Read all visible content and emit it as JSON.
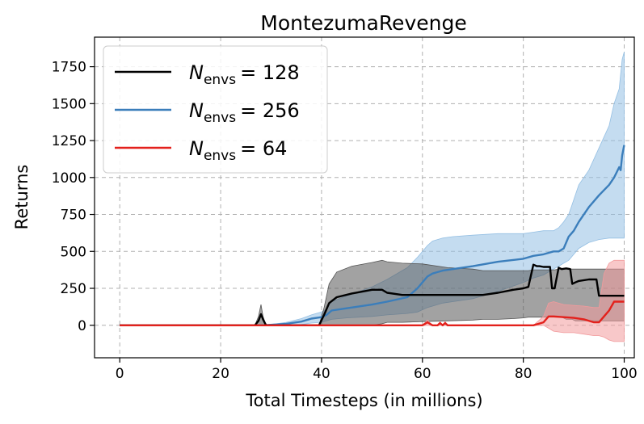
{
  "chart_data": {
    "type": "line",
    "title": "MontezumaRevenge",
    "xlabel": "Total Timesteps (in millions)",
    "ylabel": "Returns",
    "xlim": [
      -5,
      102
    ],
    "ylim": [
      -220,
      1950
    ],
    "xticks": [
      0,
      20,
      40,
      60,
      80,
      100
    ],
    "yticks": [
      0,
      250,
      500,
      750,
      1000,
      1250,
      1500,
      1750
    ],
    "grid": true,
    "legend_position": "top-left",
    "series": [
      {
        "legend_symbol": "N",
        "legend_subscript": "envs",
        "legend_value": "= 128",
        "color": "#000000",
        "fill_color": "#555555",
        "x": [
          0,
          26.8,
          27.5,
          28.0,
          28.4,
          29.0,
          39.5,
          40.5,
          41.5,
          43,
          46,
          50,
          52,
          53,
          56,
          60,
          65,
          70,
          72,
          75,
          78,
          80,
          81,
          82,
          82.7,
          83.2,
          84,
          85.3,
          85.7,
          86.2,
          87.0,
          87.6,
          88.5,
          89.3,
          89.7,
          90.3,
          91.0,
          93,
          94.5,
          95,
          95.5,
          97,
          100
        ],
        "y": [
          0,
          0,
          30,
          75,
          40,
          0,
          0,
          70,
          150,
          190,
          215,
          240,
          240,
          220,
          205,
          205,
          205,
          205,
          205,
          220,
          240,
          250,
          260,
          410,
          400,
          400,
          395,
          395,
          250,
          250,
          390,
          380,
          385,
          380,
          280,
          290,
          300,
          310,
          310,
          200,
          200,
          200,
          200
        ],
        "upper": [
          0,
          0,
          60,
          140,
          60,
          0,
          0,
          120,
          280,
          360,
          400,
          425,
          440,
          430,
          420,
          415,
          390,
          380,
          370,
          370,
          370,
          370,
          370,
          375,
          375,
          375,
          375,
          375,
          375,
          375,
          380,
          380,
          380,
          380,
          380,
          380,
          380,
          380,
          380,
          380,
          380,
          380,
          380
        ],
        "lower": [
          0,
          0,
          0,
          0,
          0,
          0,
          0,
          0,
          0,
          0,
          0,
          0,
          10,
          20,
          20,
          25,
          30,
          35,
          40,
          40,
          45,
          50,
          55,
          55,
          55,
          55,
          55,
          55,
          55,
          55,
          55,
          55,
          40,
          40,
          40,
          30,
          30,
          30,
          30,
          30,
          30,
          30,
          30
        ]
      },
      {
        "legend_symbol": "N",
        "legend_subscript": "envs",
        "legend_value": "= 256",
        "color": "#3b7ebb",
        "fill_color": "#94bfe3",
        "x": [
          0,
          28,
          31,
          33,
          36,
          38,
          40,
          41,
          42,
          45,
          50,
          53,
          57,
          59,
          61,
          62,
          63,
          64,
          66,
          70,
          75,
          80,
          82,
          84,
          86,
          87,
          88,
          89,
          89.5,
          90,
          91,
          93,
          95,
          97,
          98,
          99,
          99.3,
          99.6,
          100
        ],
        "y": [
          0,
          0,
          5,
          10,
          25,
          45,
          55,
          70,
          100,
          115,
          140,
          160,
          190,
          250,
          330,
          350,
          360,
          370,
          380,
          400,
          430,
          450,
          470,
          480,
          500,
          500,
          520,
          600,
          620,
          640,
          700,
          800,
          880,
          950,
          1000,
          1070,
          1050,
          1150,
          1220
        ],
        "upper": [
          0,
          0,
          10,
          20,
          45,
          70,
          90,
          110,
          160,
          200,
          260,
          310,
          390,
          460,
          540,
          570,
          580,
          590,
          600,
          610,
          620,
          620,
          630,
          640,
          640,
          660,
          700,
          750,
          800,
          850,
          950,
          1050,
          1200,
          1350,
          1500,
          1600,
          1700,
          1800,
          1850
        ],
        "lower": [
          0,
          0,
          0,
          0,
          5,
          15,
          20,
          30,
          40,
          50,
          60,
          70,
          80,
          90,
          120,
          130,
          140,
          150,
          160,
          180,
          230,
          290,
          320,
          340,
          380,
          400,
          420,
          440,
          460,
          480,
          520,
          560,
          580,
          590,
          590,
          590,
          590,
          590,
          590
        ]
      },
      {
        "legend_symbol": "N",
        "legend_subscript": "envs",
        "legend_value": "= 64",
        "color": "#e3211c",
        "fill_color": "#f29a9c",
        "x": [
          0,
          40,
          60,
          61,
          62,
          63,
          63.5,
          64,
          64.5,
          65,
          82,
          84,
          85,
          86,
          88,
          90,
          92,
          94,
          95,
          96,
          97,
          98,
          99,
          100
        ],
        "y": [
          0,
          0,
          0,
          20,
          0,
          0,
          15,
          0,
          15,
          0,
          0,
          20,
          60,
          60,
          55,
          50,
          40,
          20,
          20,
          60,
          100,
          160,
          160,
          160
        ],
        "upper": [
          0,
          0,
          0,
          35,
          0,
          0,
          25,
          0,
          25,
          0,
          0,
          60,
          150,
          160,
          140,
          135,
          130,
          120,
          120,
          350,
          420,
          440,
          440,
          440
        ],
        "lower": [
          0,
          0,
          0,
          0,
          0,
          0,
          0,
          0,
          0,
          0,
          0,
          0,
          -20,
          -40,
          -50,
          -50,
          -60,
          -70,
          -70,
          -80,
          -100,
          -110,
          -110,
          -110
        ]
      }
    ]
  }
}
